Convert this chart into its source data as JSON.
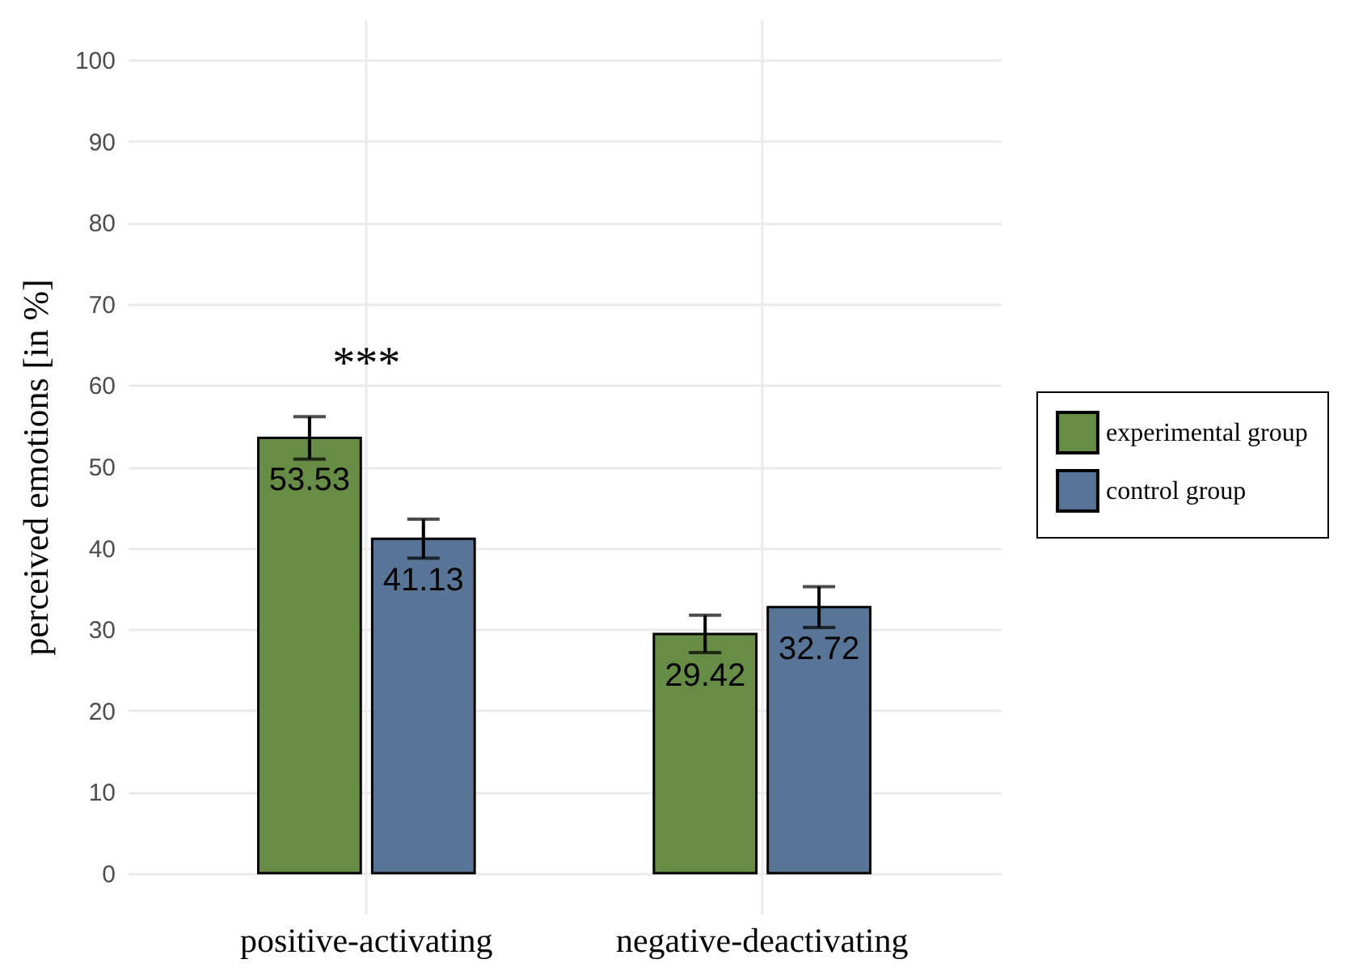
{
  "chart_data": {
    "type": "bar",
    "ylabel": "perceived emotions [in %]",
    "categories": [
      "positive-activating",
      "negative-deactivating"
    ],
    "series": [
      {
        "name": "experimental group",
        "color": "#668c46",
        "values": [
          53.53,
          29.42
        ],
        "errors": [
          2.6,
          2.3
        ]
      },
      {
        "name": "control group",
        "color": "#587597",
        "values": [
          41.13,
          32.72
        ],
        "errors": [
          2.4,
          2.5
        ]
      }
    ],
    "ylim": [
      -5,
      105
    ],
    "yticks": [
      0,
      10,
      20,
      30,
      40,
      50,
      60,
      70,
      80,
      90,
      100
    ],
    "grid": true,
    "legend": "right",
    "data_labels": true,
    "annotations": [
      "***"
    ]
  }
}
